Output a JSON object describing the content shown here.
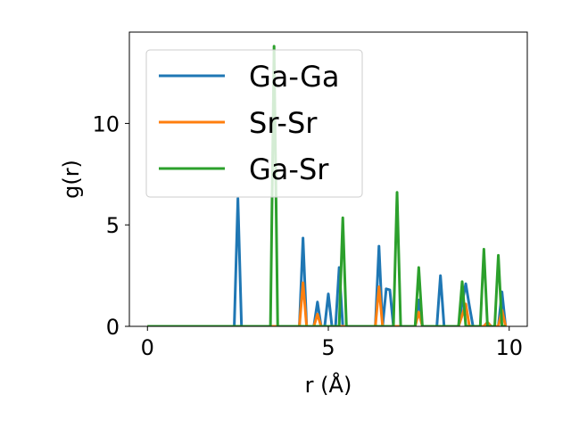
{
  "chart_data": {
    "type": "line",
    "xlabel": "r (Å)",
    "ylabel": "g(r)",
    "xlim": [
      -0.5,
      10.5
    ],
    "ylim": [
      0,
      14.5
    ],
    "xticks": [
      0,
      5,
      10
    ],
    "yticks": [
      0,
      5,
      10
    ],
    "xtick_labels": [
      "0",
      "5",
      "10"
    ],
    "ytick_labels": [
      "0",
      "5",
      "10"
    ],
    "grid": false,
    "legend_position": "upper-left",
    "x": [
      0.0,
      0.1,
      0.2,
      0.3,
      0.4,
      0.5,
      0.6,
      0.7,
      0.8,
      0.9,
      1.0,
      1.1,
      1.2,
      1.3,
      1.4,
      1.5,
      1.6,
      1.7,
      1.8,
      1.9,
      2.0,
      2.1,
      2.2,
      2.3,
      2.4,
      2.5,
      2.6,
      2.7,
      2.8,
      2.9,
      3.0,
      3.1,
      3.2,
      3.3,
      3.4,
      3.5,
      3.6,
      3.7,
      3.8,
      3.9,
      4.0,
      4.1,
      4.2,
      4.3,
      4.4,
      4.5,
      4.6,
      4.7,
      4.8,
      4.9,
      5.0,
      5.1,
      5.2,
      5.3,
      5.4,
      5.5,
      5.6,
      5.7,
      5.8,
      5.9,
      6.0,
      6.1,
      6.2,
      6.3,
      6.4,
      6.5,
      6.6,
      6.7,
      6.8,
      6.9,
      7.0,
      7.1,
      7.2,
      7.3,
      7.4,
      7.5,
      7.6,
      7.7,
      7.8,
      7.9,
      8.0,
      8.1,
      8.2,
      8.3,
      8.4,
      8.5,
      8.6,
      8.7,
      8.8,
      8.9,
      9.0,
      9.1,
      9.2,
      9.3,
      9.4,
      9.5,
      9.6,
      9.7,
      9.8,
      9.9
    ],
    "series": [
      {
        "name": "Ga-Ga",
        "color": "#1f77b4",
        "values": [
          0,
          0,
          0,
          0,
          0,
          0,
          0,
          0,
          0,
          0,
          0,
          0,
          0,
          0,
          0,
          0,
          0,
          0,
          0,
          0,
          0,
          0,
          0,
          0,
          0,
          6.3,
          0,
          0,
          0,
          0,
          0,
          0,
          0,
          0,
          0,
          0,
          0,
          0,
          0,
          0,
          0,
          0,
          0,
          4.35,
          0,
          0,
          0,
          1.2,
          0,
          0,
          1.6,
          0,
          0,
          2.9,
          0,
          0,
          0,
          0,
          0,
          0,
          0,
          0,
          0,
          0,
          3.95,
          0,
          1.85,
          1.8,
          0,
          0,
          0,
          0,
          0,
          0,
          0,
          1.3,
          0,
          0,
          0,
          0,
          0,
          2.5,
          0,
          0,
          0,
          0,
          0,
          1.15,
          2.1,
          1.0,
          0,
          0,
          0,
          0,
          0.2,
          0,
          0,
          0,
          1.7,
          0
        ]
      },
      {
        "name": "Sr-Sr",
        "color": "#ff7f0e",
        "values": [
          0,
          0,
          0,
          0,
          0,
          0,
          0,
          0,
          0,
          0,
          0,
          0,
          0,
          0,
          0,
          0,
          0,
          0,
          0,
          0,
          0,
          0,
          0,
          0,
          0,
          0,
          0,
          0,
          0,
          0,
          0,
          0,
          0,
          0,
          0,
          0,
          0,
          0,
          0,
          0,
          0,
          0,
          0,
          2.15,
          0,
          0,
          0,
          0.6,
          0,
          0,
          0,
          0,
          0,
          0,
          0,
          0,
          0,
          0,
          0,
          0,
          0,
          0,
          0,
          0,
          1.95,
          0,
          0,
          0,
          0,
          0,
          0,
          0,
          0,
          0,
          0,
          0.7,
          0,
          0,
          0,
          0,
          0,
          0,
          0,
          0,
          0,
          0,
          0,
          0.55,
          1.1,
          0,
          0,
          0,
          0,
          0,
          0.2,
          0,
          0,
          0,
          0.8,
          0
        ]
      },
      {
        "name": "Ga-Sr",
        "color": "#2ca02c",
        "values": [
          0,
          0,
          0,
          0,
          0,
          0,
          0,
          0,
          0,
          0,
          0,
          0,
          0,
          0,
          0,
          0,
          0,
          0,
          0,
          0,
          0,
          0,
          0,
          0,
          0,
          0,
          0,
          0,
          0,
          0,
          0,
          0,
          0,
          0,
          0,
          13.8,
          0,
          0,
          0,
          0,
          0,
          0,
          0,
          0,
          0,
          0,
          0,
          0,
          0,
          0,
          0,
          0,
          0,
          0,
          5.35,
          0,
          0,
          0,
          0,
          0,
          0,
          0,
          0,
          0,
          0,
          0,
          0,
          0,
          0,
          6.6,
          0,
          0,
          0,
          0,
          0,
          2.9,
          0,
          0,
          0,
          0,
          0,
          0,
          0,
          0,
          0,
          0,
          0,
          2.2,
          0,
          0,
          0,
          0,
          0,
          3.8,
          0,
          0,
          0,
          3.5,
          0,
          0
        ]
      }
    ]
  }
}
